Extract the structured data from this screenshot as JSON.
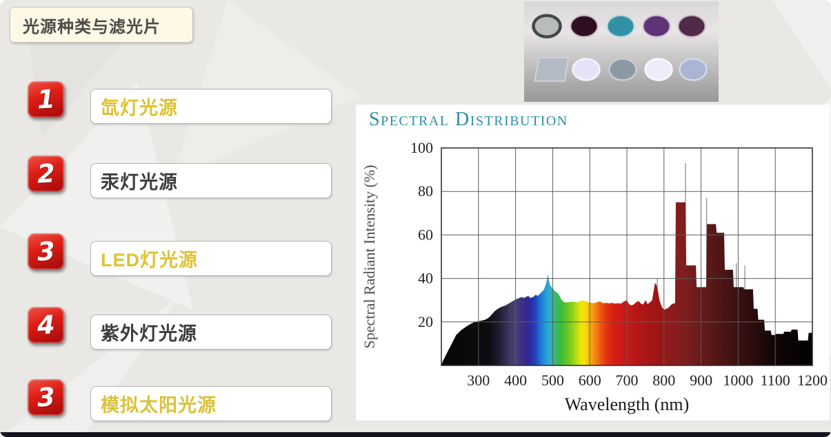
{
  "slide": {
    "title": "光源种类与滤光片",
    "items": [
      {
        "number": "1",
        "label": "氙灯光源",
        "emphasis": "gold"
      },
      {
        "number": "2",
        "label": "汞灯光源",
        "emphasis": "dark"
      },
      {
        "number": "3",
        "label": "LED灯光源",
        "emphasis": "gold"
      },
      {
        "number": "4",
        "label": "紫外灯光源",
        "emphasis": "dark"
      },
      {
        "number": "3",
        "label": "模拟太阳光源",
        "emphasis": "gold"
      }
    ],
    "colors": {
      "badge_red_top": "#ee3b2f",
      "badge_red_bottom": "#9c0a0a",
      "gold_text": "#dcc235",
      "dark_text": "#3c3c3c",
      "title_box_bg": "#fdf9e6",
      "slide_bg": "#e9e8e5",
      "bottom_bar": "#14141f"
    }
  },
  "filters_image": {
    "background": {
      "top": "#d9d7d7",
      "middle": "#e7e5e5",
      "bottom": "#9d9c9c"
    },
    "row1": [
      {
        "name": "gray-nd-filter",
        "fill": "#b9bdba",
        "rim": "#45484a"
      },
      {
        "name": "dark-magenta-filter",
        "fill": "#2f1022",
        "rim": "#cbb9c6"
      },
      {
        "name": "teal-filter",
        "fill": "#3191a6",
        "rim": "#bfd6da"
      },
      {
        "name": "purple-filter",
        "fill": "#5e3377",
        "rim": "#ccbad6"
      },
      {
        "name": "plum-filter",
        "fill": "#502a49",
        "rim": "#c6b2c2"
      }
    ],
    "row2": [
      {
        "name": "square-glass-filter",
        "fill": "#b5bbc5",
        "rim": "#d4d8de"
      },
      {
        "name": "pale-lavender-filter",
        "fill": "#e5e3f7",
        "rim": "#f4f2fb"
      },
      {
        "name": "blue-gray-filter",
        "fill": "#8c98a4",
        "rim": "#c9ccd2"
      },
      {
        "name": "white-filter",
        "fill": "#f0ebf9",
        "rim": "#fbf8fd"
      },
      {
        "name": "steel-blue-filter",
        "fill": "#aab5d3",
        "rim": "#d3d9e9"
      }
    ]
  },
  "chart_data": {
    "type": "area",
    "title": "Spectral Distribution",
    "title_color": "#2e8fa3",
    "xlabel": "Wavelength (nm)",
    "ylabel": "Spectral Radiant Intensity (%)",
    "xlim": [
      200,
      1200
    ],
    "ylim": [
      0,
      100
    ],
    "xticks": [
      300,
      400,
      500,
      600,
      700,
      800,
      900,
      1000,
      1100,
      1200
    ],
    "yticks": [
      20,
      40,
      60,
      80,
      100
    ],
    "grid": true,
    "envelope": [
      [
        200,
        0
      ],
      [
        204,
        2
      ],
      [
        210,
        4
      ],
      [
        216,
        6
      ],
      [
        222,
        8
      ],
      [
        228,
        10
      ],
      [
        234,
        12
      ],
      [
        240,
        14
      ],
      [
        246,
        15
      ],
      [
        252,
        16
      ],
      [
        260,
        17
      ],
      [
        268,
        18
      ],
      [
        278,
        19
      ],
      [
        290,
        20
      ],
      [
        305,
        20.5
      ],
      [
        318,
        21
      ],
      [
        328,
        22
      ],
      [
        336,
        23.5
      ],
      [
        344,
        25
      ],
      [
        352,
        26
      ],
      [
        362,
        27
      ],
      [
        372,
        27.5
      ],
      [
        382,
        28.5
      ],
      [
        392,
        29.5
      ],
      [
        402,
        30.5
      ],
      [
        410,
        31
      ],
      [
        416,
        31.5
      ],
      [
        422,
        31
      ],
      [
        428,
        31.5
      ],
      [
        434,
        32
      ],
      [
        440,
        31
      ],
      [
        448,
        31.5
      ],
      [
        454,
        32.5
      ],
      [
        460,
        32
      ],
      [
        466,
        33
      ],
      [
        472,
        34
      ],
      [
        477,
        35
      ],
      [
        481,
        37
      ],
      [
        484,
        39
      ],
      [
        487,
        42
      ],
      [
        490,
        39
      ],
      [
        493,
        37
      ],
      [
        497,
        36
      ],
      [
        502,
        35
      ],
      [
        507,
        34
      ],
      [
        512,
        33.5
      ],
      [
        517,
        32.5
      ],
      [
        521,
        31
      ],
      [
        526,
        29.8
      ],
      [
        532,
        29
      ],
      [
        540,
        29
      ],
      [
        548,
        29.2
      ],
      [
        556,
        29.4
      ],
      [
        564,
        29
      ],
      [
        572,
        29.4
      ],
      [
        580,
        30
      ],
      [
        588,
        29.6
      ],
      [
        596,
        29
      ],
      [
        604,
        28.8
      ],
      [
        612,
        28.6
      ],
      [
        620,
        29.2
      ],
      [
        628,
        29.4
      ],
      [
        636,
        28.6
      ],
      [
        644,
        28.8
      ],
      [
        652,
        28.5
      ],
      [
        660,
        28.8
      ],
      [
        668,
        28.4
      ],
      [
        676,
        28.6
      ],
      [
        684,
        28.4
      ],
      [
        692,
        29.4
      ],
      [
        700,
        30
      ],
      [
        706,
        28.2
      ],
      [
        712,
        27.6
      ],
      [
        718,
        28
      ],
      [
        726,
        29.2
      ],
      [
        732,
        29.6
      ],
      [
        738,
        28.4
      ],
      [
        744,
        28
      ],
      [
        750,
        30
      ],
      [
        756,
        28.2
      ],
      [
        762,
        29
      ],
      [
        768,
        30
      ],
      [
        772,
        34
      ],
      [
        776,
        38
      ],
      [
        780,
        37
      ],
      [
        784,
        34
      ],
      [
        788,
        30
      ],
      [
        794,
        27
      ],
      [
        800,
        25.5
      ],
      [
        806,
        26
      ],
      [
        812,
        26.5
      ],
      [
        820,
        28
      ],
      [
        828,
        28.6
      ],
      [
        830,
        28.6
      ],
      [
        832,
        75
      ],
      [
        858,
        75
      ],
      [
        860,
        46
      ],
      [
        886,
        46
      ],
      [
        888,
        36
      ],
      [
        914,
        36
      ],
      [
        916,
        65
      ],
      [
        940,
        65
      ],
      [
        942,
        61
      ],
      [
        962,
        61
      ],
      [
        964,
        44
      ],
      [
        986,
        44
      ],
      [
        988,
        36
      ],
      [
        1014,
        36
      ],
      [
        1016,
        35
      ],
      [
        1040,
        35
      ],
      [
        1042,
        26
      ],
      [
        1052,
        26
      ],
      [
        1054,
        21
      ],
      [
        1070,
        21
      ],
      [
        1072,
        16
      ],
      [
        1088,
        16
      ],
      [
        1090,
        14
      ],
      [
        1100,
        14
      ],
      [
        1102,
        14.5
      ],
      [
        1122,
        14.5
      ],
      [
        1124,
        15.5
      ],
      [
        1142,
        15.5
      ],
      [
        1144,
        16.5
      ],
      [
        1160,
        16.5
      ],
      [
        1162,
        11.5
      ],
      [
        1188,
        11.5
      ],
      [
        1190,
        15
      ],
      [
        1200,
        15
      ]
    ],
    "spikes": [
      [
        782,
        40
      ],
      [
        858,
        93
      ],
      [
        915,
        77
      ],
      [
        995,
        47
      ],
      [
        1018,
        46
      ]
    ],
    "spectrum_colors": [
      [
        200,
        "#060606"
      ],
      [
        330,
        "#0d0d12"
      ],
      [
        360,
        "#23203a"
      ],
      [
        385,
        "#3f3a62"
      ],
      [
        400,
        "#474070"
      ],
      [
        415,
        "#3e3382"
      ],
      [
        430,
        "#322893"
      ],
      [
        443,
        "#2a30a8"
      ],
      [
        455,
        "#2247bf"
      ],
      [
        465,
        "#1e6fd2"
      ],
      [
        475,
        "#1e8cda"
      ],
      [
        485,
        "#27a6d6"
      ],
      [
        494,
        "#2db2b4"
      ],
      [
        503,
        "#33b686"
      ],
      [
        513,
        "#39ba58"
      ],
      [
        525,
        "#42bc34"
      ],
      [
        540,
        "#66c624"
      ],
      [
        555,
        "#97d21a"
      ],
      [
        568,
        "#c7e010"
      ],
      [
        578,
        "#eee80c"
      ],
      [
        588,
        "#f7d90c"
      ],
      [
        598,
        "#f8b910"
      ],
      [
        610,
        "#f79413"
      ],
      [
        622,
        "#f27013"
      ],
      [
        634,
        "#ea4c12"
      ],
      [
        646,
        "#e23212"
      ],
      [
        660,
        "#da2214"
      ],
      [
        680,
        "#cf1b16"
      ],
      [
        705,
        "#c21818"
      ],
      [
        735,
        "#b21616"
      ],
      [
        765,
        "#a41515"
      ],
      [
        795,
        "#961717"
      ],
      [
        825,
        "#8b1c1c"
      ],
      [
        855,
        "#7d1f1f"
      ],
      [
        885,
        "#6d1c1c"
      ],
      [
        915,
        "#5f1919"
      ],
      [
        945,
        "#521616"
      ],
      [
        975,
        "#451313"
      ],
      [
        1005,
        "#381010"
      ],
      [
        1035,
        "#2c0d0d"
      ],
      [
        1065,
        "#1f0909"
      ],
      [
        1095,
        "#130606"
      ],
      [
        1140,
        "#0a0303"
      ],
      [
        1200,
        "#040202"
      ]
    ]
  }
}
